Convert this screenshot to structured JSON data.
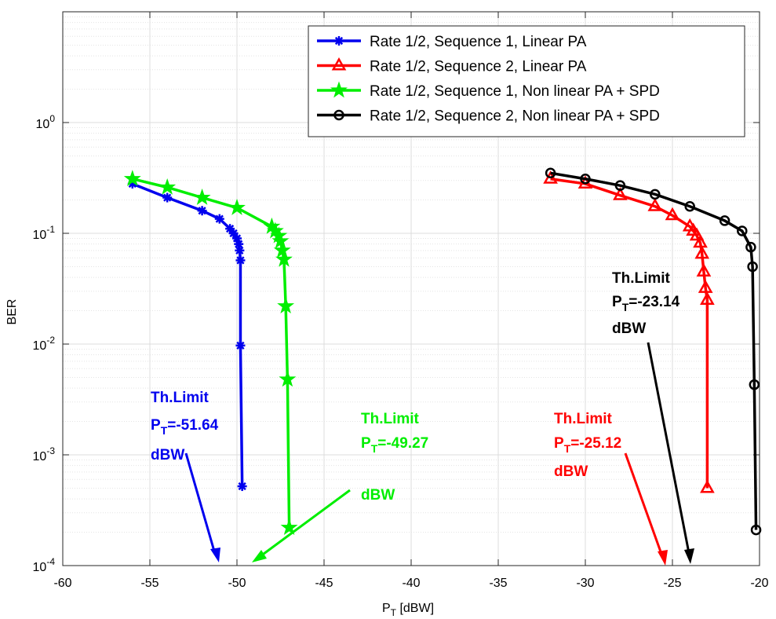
{
  "chart_data": {
    "type": "line",
    "xlabel_main": "P",
    "xlabel_sub": "T",
    "xlabel_rest": " [dBW]",
    "ylabel": "BER",
    "xlim": [
      -60,
      -20
    ],
    "ylim": [
      0.0001,
      10
    ],
    "yscale": "log",
    "grid": true,
    "legend_position": "top-right",
    "x_ticks": [
      -60,
      -55,
      -50,
      -45,
      -40,
      -35,
      -30,
      -25,
      -20
    ],
    "x_tick_labels": [
      "-60",
      "-55",
      "-50",
      "-45",
      "-40",
      "-35",
      "-30",
      "-25",
      "-20"
    ],
    "y_ticks": [
      {
        "value": 0.0001,
        "base": "10",
        "exp": "-4"
      },
      {
        "value": 0.001,
        "base": "10",
        "exp": "-3"
      },
      {
        "value": 0.01,
        "base": "10",
        "exp": "-2"
      },
      {
        "value": 0.1,
        "base": "10",
        "exp": "-1"
      },
      {
        "value": 1,
        "base": "10",
        "exp": "0"
      }
    ],
    "series": [
      {
        "name": "Rate 1/2, Sequence 1, Linear PA",
        "color": "#0000ee",
        "marker": "asterisk",
        "x": [
          -56,
          -54,
          -52,
          -51,
          -50.4,
          -50.2,
          -50.0,
          -49.9,
          -49.85,
          -49.8,
          -49.8,
          -49.7
        ],
        "y": [
          0.28,
          0.21,
          0.16,
          0.135,
          0.11,
          0.1,
          0.09,
          0.08,
          0.07,
          0.057,
          0.0097,
          0.00052
        ]
      },
      {
        "name": "Rate 1/2, Sequence 2, Linear PA",
        "color": "#ff0000",
        "marker": "triangle",
        "x": [
          -32,
          -30,
          -28,
          -26,
          -25,
          -24,
          -23.8,
          -23.6,
          -23.4,
          -23.3,
          -23.2,
          -23.1,
          -23.0,
          -23.0
        ],
        "y": [
          0.31,
          0.28,
          0.22,
          0.175,
          0.145,
          0.115,
          0.105,
          0.095,
          0.082,
          0.065,
          0.045,
          0.032,
          0.025,
          0.0005
        ]
      },
      {
        "name": "Rate 1/2, Sequence 1, Non linear PA + SPD",
        "color": "#00ee00",
        "marker": "star",
        "x": [
          -56,
          -54,
          -52,
          -50,
          -48,
          -47.8,
          -47.6,
          -47.5,
          -47.4,
          -47.3,
          -47.2,
          -47.1,
          -47.0
        ],
        "y": [
          0.31,
          0.26,
          0.21,
          0.17,
          0.115,
          0.105,
          0.095,
          0.085,
          0.07,
          0.058,
          0.022,
          0.0048,
          0.00022
        ]
      },
      {
        "name": "Rate 1/2, Sequence 2, Non linear PA + SPD",
        "color": "#000000",
        "marker": "circle",
        "x": [
          -32,
          -30,
          -28,
          -26,
          -24,
          -22,
          -21,
          -20.5,
          -20.4,
          -20.3,
          -20.2
        ],
        "y": [
          0.35,
          0.31,
          0.27,
          0.225,
          0.175,
          0.13,
          0.105,
          0.075,
          0.05,
          0.0043,
          0.00021
        ]
      }
    ],
    "annotations": [
      {
        "color": "#0000ee",
        "line1": "Th.Limit",
        "p": "P",
        "sub": "T",
        "value": "=-51.64",
        "unit": "dBW"
      },
      {
        "color": "#00ee00",
        "line1": "Th.Limit",
        "p": "P",
        "sub": "T",
        "value": "=-49.27",
        "unit": "dBW"
      },
      {
        "color": "#ff0000",
        "line1": "Th.Limit",
        "p": "P",
        "sub": "T",
        "value": "=-25.12",
        "unit": "dBW"
      },
      {
        "color": "#000000",
        "line1": "Th.Limit",
        "p": "P",
        "sub": "T",
        "value": "=-23.14",
        "unit": "dBW"
      }
    ]
  }
}
